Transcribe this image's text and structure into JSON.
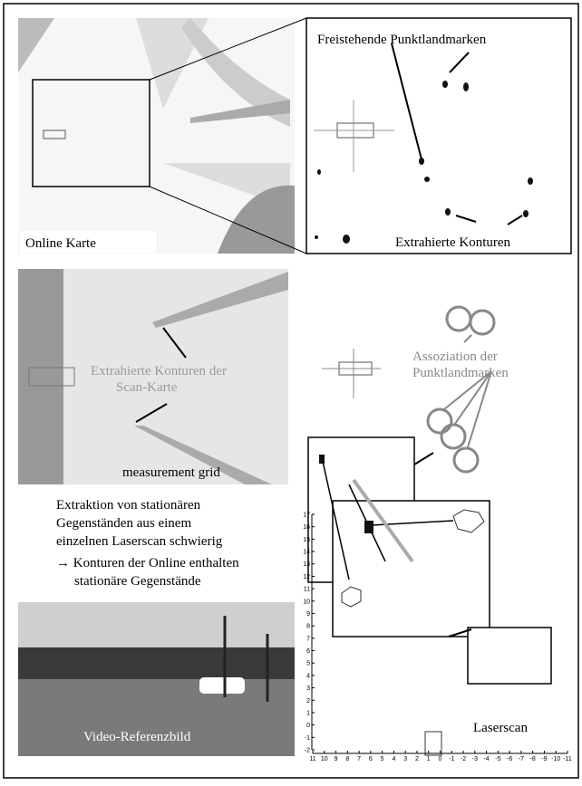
{
  "online_map": {
    "label": "Online Karte"
  },
  "zoom": {
    "landmarks_label": "Freistehende Punktlandmarken",
    "contours_label": "Extrahierte Konturen"
  },
  "scan_map": {
    "contours_label": [
      "Extrahierte Konturen der",
      "Scan-Karte"
    ],
    "grid_label": "measurement grid"
  },
  "association": {
    "label": [
      "Assoziation der",
      "Punktlandmarken"
    ]
  },
  "description": {
    "lines": [
      "Extraktion von stationären",
      "Gegenständen aus einem",
      "einzelnen Laserscan schwierig",
      "→ Konturen der Online enthalten",
      "stationäre Gegenstände"
    ]
  },
  "video": {
    "label": "Video-Referenzbild"
  },
  "laserscan": {
    "label": "Laserscan",
    "xticks": [
      11,
      10,
      9,
      8,
      7,
      6,
      5,
      4,
      3,
      2,
      1,
      0,
      -1,
      -2,
      -3,
      -4,
      -5,
      -6,
      -7,
      -8,
      -9,
      -10,
      -11
    ],
    "yticks": [
      -2,
      -1,
      0,
      1,
      2,
      3,
      4,
      5,
      6,
      7,
      8,
      9,
      10,
      11,
      12,
      13,
      14,
      15,
      16,
      17
    ]
  }
}
